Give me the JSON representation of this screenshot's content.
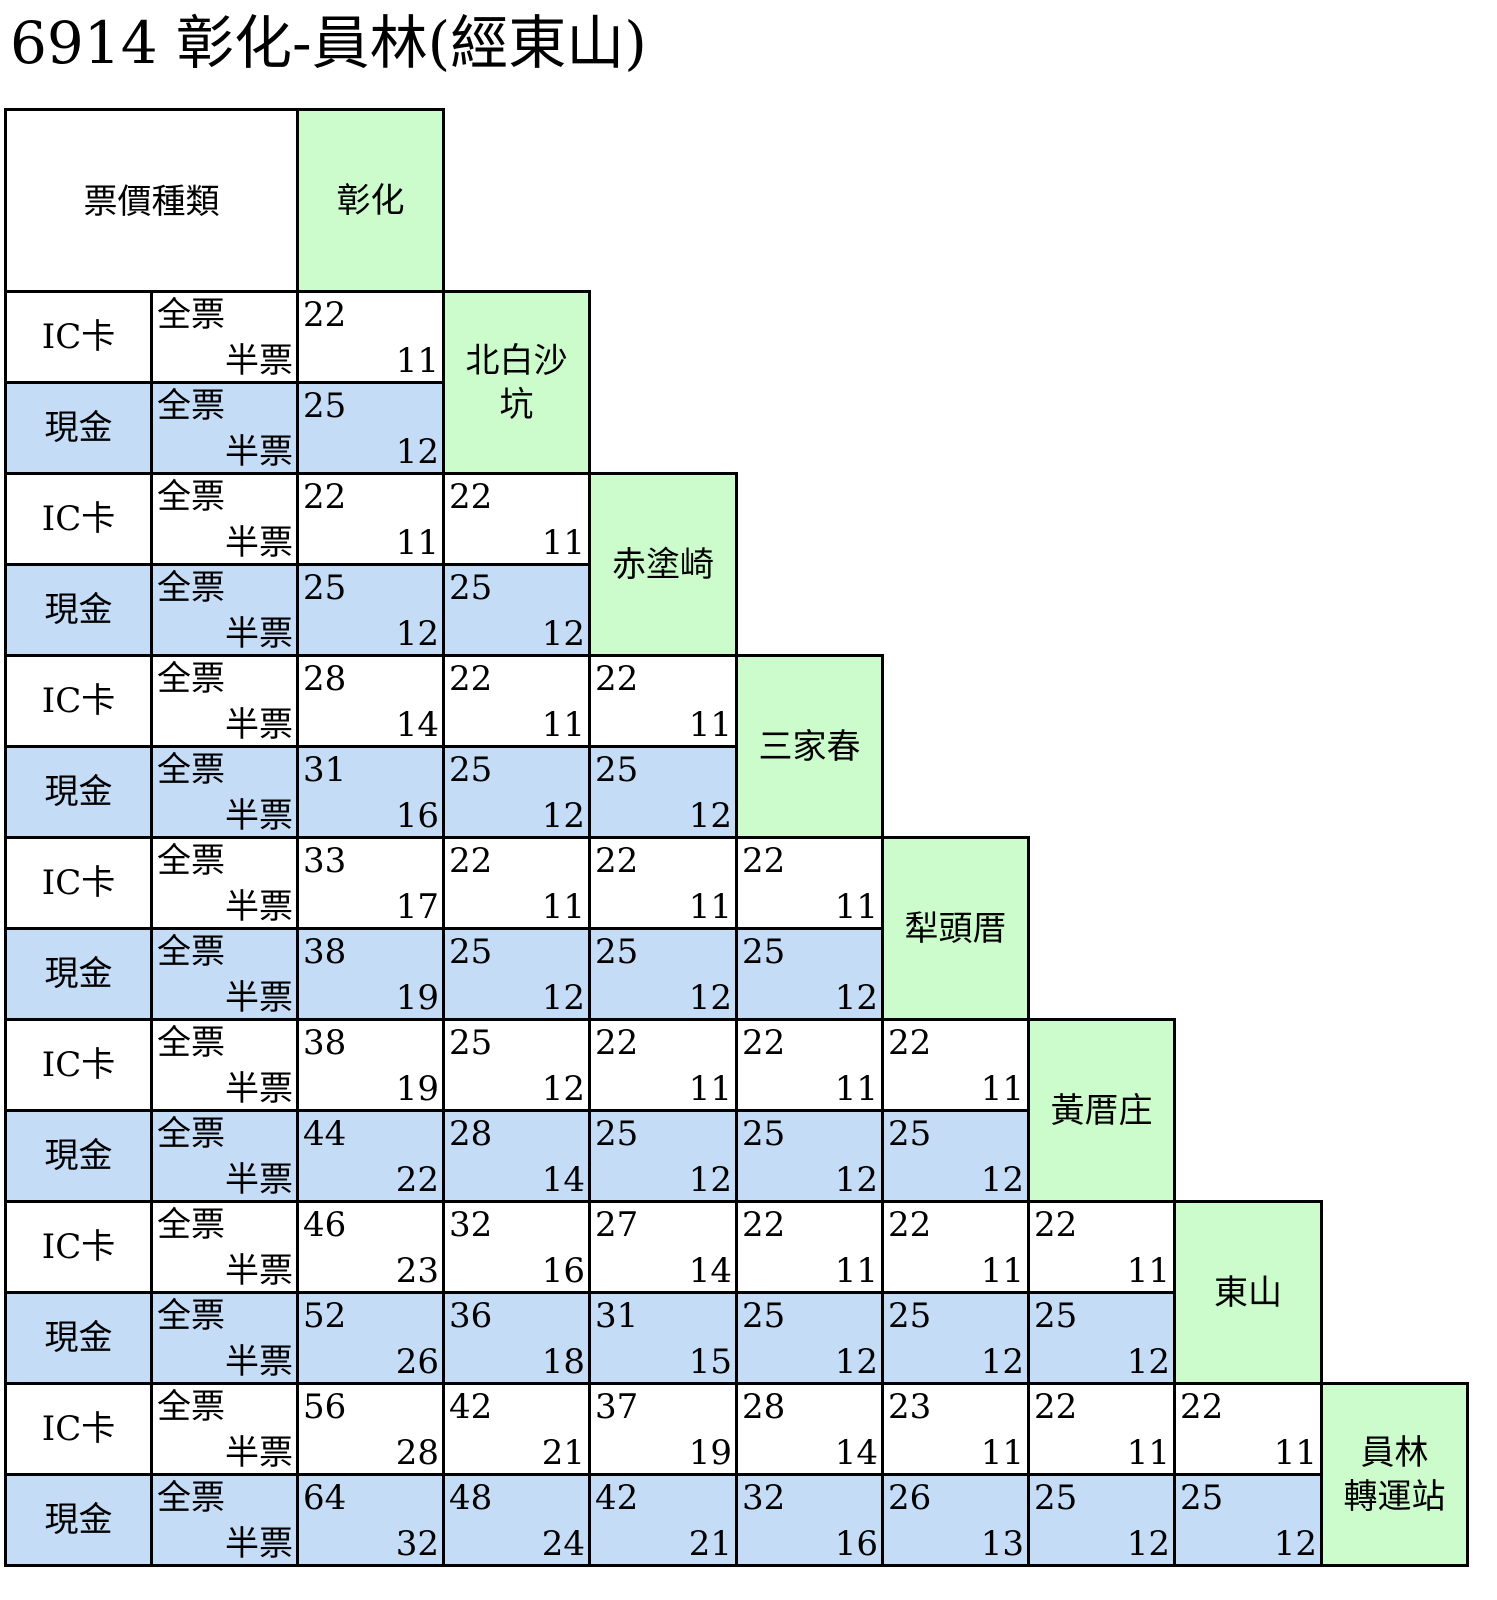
{
  "title": "6914 彰化-員林(經東山)",
  "header": {
    "fare_type_label": "票價種類"
  },
  "labels": {
    "ic_card": "IC卡",
    "cash": "現金",
    "full_ticket": "全票",
    "half_ticket": "半票"
  },
  "stops": [
    "彰化",
    "北白沙\n坑",
    "赤塗崎",
    "三家春",
    "犁頭厝",
    "黃厝庄",
    "東山",
    "員林\n轉運站"
  ],
  "fares": [
    {
      "ic": [
        [
          22,
          11
        ]
      ],
      "cash": [
        [
          25,
          12
        ]
      ]
    },
    {
      "ic": [
        [
          22,
          11
        ],
        [
          22,
          11
        ]
      ],
      "cash": [
        [
          25,
          12
        ],
        [
          25,
          12
        ]
      ]
    },
    {
      "ic": [
        [
          28,
          14
        ],
        [
          22,
          11
        ],
        [
          22,
          11
        ]
      ],
      "cash": [
        [
          31,
          16
        ],
        [
          25,
          12
        ],
        [
          25,
          12
        ]
      ]
    },
    {
      "ic": [
        [
          33,
          17
        ],
        [
          22,
          11
        ],
        [
          22,
          11
        ],
        [
          22,
          11
        ]
      ],
      "cash": [
        [
          38,
          19
        ],
        [
          25,
          12
        ],
        [
          25,
          12
        ],
        [
          25,
          12
        ]
      ]
    },
    {
      "ic": [
        [
          38,
          19
        ],
        [
          25,
          12
        ],
        [
          22,
          11
        ],
        [
          22,
          11
        ],
        [
          22,
          11
        ]
      ],
      "cash": [
        [
          44,
          22
        ],
        [
          28,
          14
        ],
        [
          25,
          12
        ],
        [
          25,
          12
        ],
        [
          25,
          12
        ]
      ]
    },
    {
      "ic": [
        [
          46,
          23
        ],
        [
          32,
          16
        ],
        [
          27,
          14
        ],
        [
          22,
          11
        ],
        [
          22,
          11
        ],
        [
          22,
          11
        ]
      ],
      "cash": [
        [
          52,
          26
        ],
        [
          36,
          18
        ],
        [
          31,
          15
        ],
        [
          25,
          12
        ],
        [
          25,
          12
        ],
        [
          25,
          12
        ]
      ]
    },
    {
      "ic": [
        [
          56,
          28
        ],
        [
          42,
          21
        ],
        [
          37,
          19
        ],
        [
          28,
          14
        ],
        [
          23,
          11
        ],
        [
          22,
          11
        ],
        [
          22,
          11
        ]
      ],
      "cash": [
        [
          64,
          32
        ],
        [
          48,
          24
        ],
        [
          42,
          21
        ],
        [
          32,
          16
        ],
        [
          26,
          13
        ],
        [
          25,
          12
        ],
        [
          25,
          12
        ]
      ]
    }
  ],
  "colors": {
    "ic_row": "#ffffff",
    "cash_row": "#c5dcf7",
    "station": "#ccfccc",
    "border": "#000000"
  }
}
